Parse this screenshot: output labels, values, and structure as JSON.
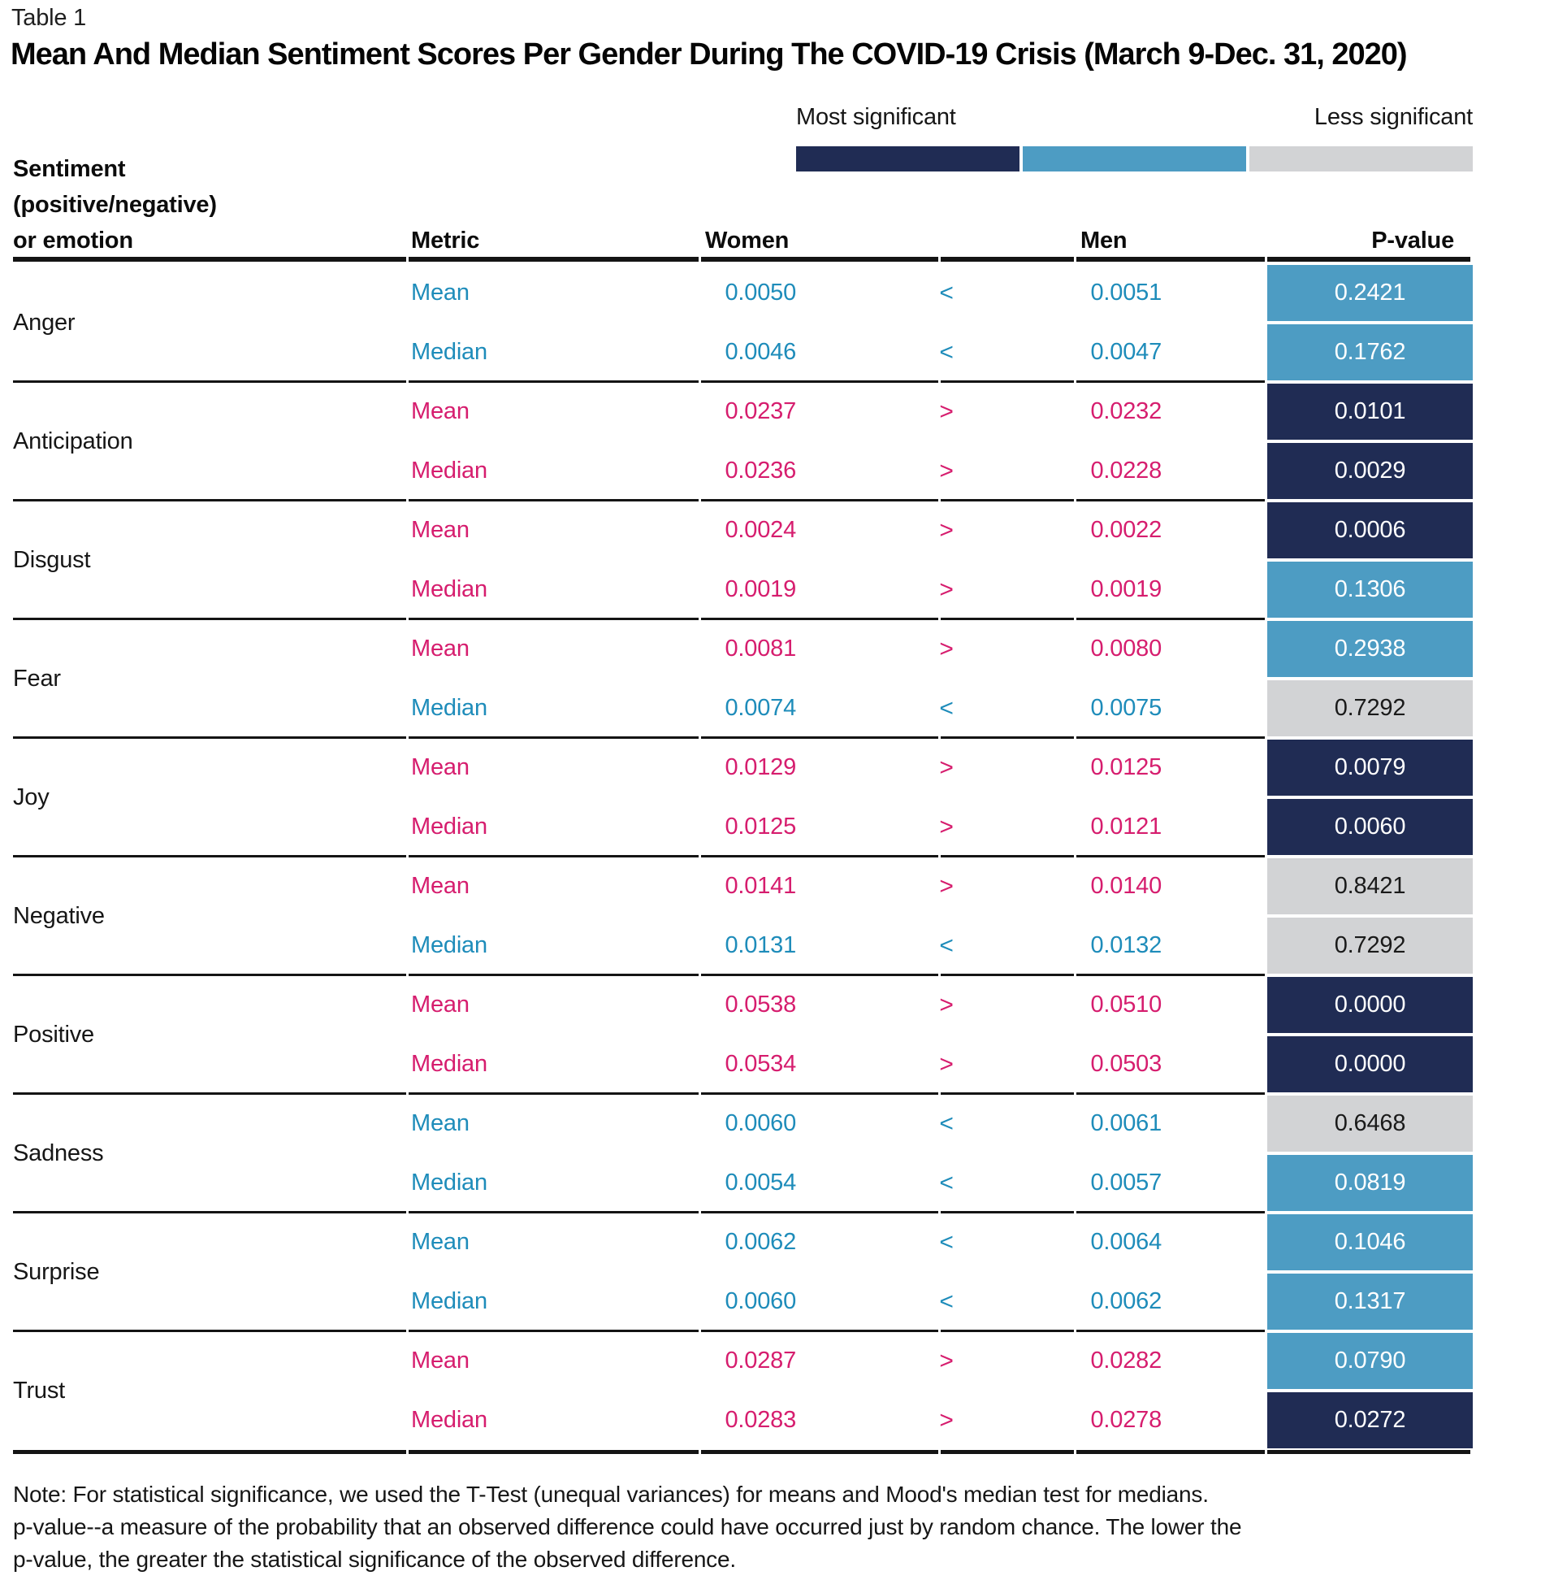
{
  "table_label": "Table 1",
  "legend": {
    "most_label": "Most significant",
    "less_label": "Less significant"
  },
  "columns": {
    "sentiment_lines": [
      "Sentiment",
      "(positive/negative)",
      "or emotion"
    ],
    "metric": "Metric",
    "women": "Women",
    "men": "Men",
    "p_value": "P-value"
  },
  "chart_data": {
    "type": "table",
    "title": "Mean And Median Sentiment Scores Per Gender During The COVID-19 Crisis (March 9-Dec. 31, 2020)",
    "columns": [
      "Sentiment (positive/negative) or emotion",
      "Metric",
      "Women",
      "Men",
      "P-value"
    ],
    "significance_colors": {
      "high": "#202c54",
      "medium": "#4d9cc3",
      "low": "#d2d3d5"
    },
    "direction_colors": {
      "women_greater": "#d61d6e",
      "women_less": "#1e8cba"
    },
    "groups": [
      {
        "emotion": "Anger",
        "rows": [
          {
            "metric": "Mean",
            "women": "0.0050",
            "cmp": "<",
            "men": "0.0051",
            "p": "0.2421",
            "significance": "medium"
          },
          {
            "metric": "Median",
            "women": "0.0046",
            "cmp": "<",
            "men": "0.0047",
            "p": "0.1762",
            "significance": "medium"
          }
        ]
      },
      {
        "emotion": "Anticipation",
        "rows": [
          {
            "metric": "Mean",
            "women": "0.0237",
            "cmp": ">",
            "men": "0.0232",
            "p": "0.0101",
            "significance": "high"
          },
          {
            "metric": "Median",
            "women": "0.0236",
            "cmp": ">",
            "men": "0.0228",
            "p": "0.0029",
            "significance": "high"
          }
        ]
      },
      {
        "emotion": "Disgust",
        "rows": [
          {
            "metric": "Mean",
            "women": "0.0024",
            "cmp": ">",
            "men": "0.0022",
            "p": "0.0006",
            "significance": "high"
          },
          {
            "metric": "Median",
            "women": "0.0019",
            "cmp": ">",
            "men": "0.0019",
            "p": "0.1306",
            "significance": "medium"
          }
        ]
      },
      {
        "emotion": "Fear",
        "rows": [
          {
            "metric": "Mean",
            "women": "0.0081",
            "cmp": ">",
            "men": "0.0080",
            "p": "0.2938",
            "significance": "medium"
          },
          {
            "metric": "Median",
            "women": "0.0074",
            "cmp": "<",
            "men": "0.0075",
            "p": "0.7292",
            "significance": "low"
          }
        ]
      },
      {
        "emotion": "Joy",
        "rows": [
          {
            "metric": "Mean",
            "women": "0.0129",
            "cmp": ">",
            "men": "0.0125",
            "p": "0.0079",
            "significance": "high"
          },
          {
            "metric": "Median",
            "women": "0.0125",
            "cmp": ">",
            "men": "0.0121",
            "p": "0.0060",
            "significance": "high"
          }
        ]
      },
      {
        "emotion": "Negative",
        "rows": [
          {
            "metric": "Mean",
            "women": "0.0141",
            "cmp": ">",
            "men": "0.0140",
            "p": "0.8421",
            "significance": "low"
          },
          {
            "metric": "Median",
            "women": "0.0131",
            "cmp": "<",
            "men": "0.0132",
            "p": "0.7292",
            "significance": "low"
          }
        ]
      },
      {
        "emotion": "Positive",
        "rows": [
          {
            "metric": "Mean",
            "women": "0.0538",
            "cmp": ">",
            "men": "0.0510",
            "p": "0.0000",
            "significance": "high"
          },
          {
            "metric": "Median",
            "women": "0.0534",
            "cmp": ">",
            "men": "0.0503",
            "p": "0.0000",
            "significance": "high"
          }
        ]
      },
      {
        "emotion": "Sadness",
        "rows": [
          {
            "metric": "Mean",
            "women": "0.0060",
            "cmp": "<",
            "men": "0.0061",
            "p": "0.6468",
            "significance": "low"
          },
          {
            "metric": "Median",
            "women": "0.0054",
            "cmp": "<",
            "men": "0.0057",
            "p": "0.0819",
            "significance": "medium"
          }
        ]
      },
      {
        "emotion": "Surprise",
        "rows": [
          {
            "metric": "Mean",
            "women": "0.0062",
            "cmp": "<",
            "men": "0.0064",
            "p": "0.1046",
            "significance": "medium"
          },
          {
            "metric": "Median",
            "women": "0.0060",
            "cmp": "<",
            "men": "0.0062",
            "p": "0.1317",
            "significance": "medium"
          }
        ]
      },
      {
        "emotion": "Trust",
        "rows": [
          {
            "metric": "Mean",
            "women": "0.0287",
            "cmp": ">",
            "men": "0.0282",
            "p": "0.0790",
            "significance": "medium"
          },
          {
            "metric": "Median",
            "women": "0.0283",
            "cmp": ">",
            "men": "0.0278",
            "p": "0.0272",
            "significance": "high"
          }
        ]
      }
    ]
  },
  "note_lines": [
    "Note: For statistical significance, we used the T-Test (unequal variances) for means and Mood's median test for medians.",
    "p-value--a measure of the probability that an observed difference could have occurred just by random chance. The lower the",
    "p-value, the greater the statistical significance of the observed difference."
  ]
}
